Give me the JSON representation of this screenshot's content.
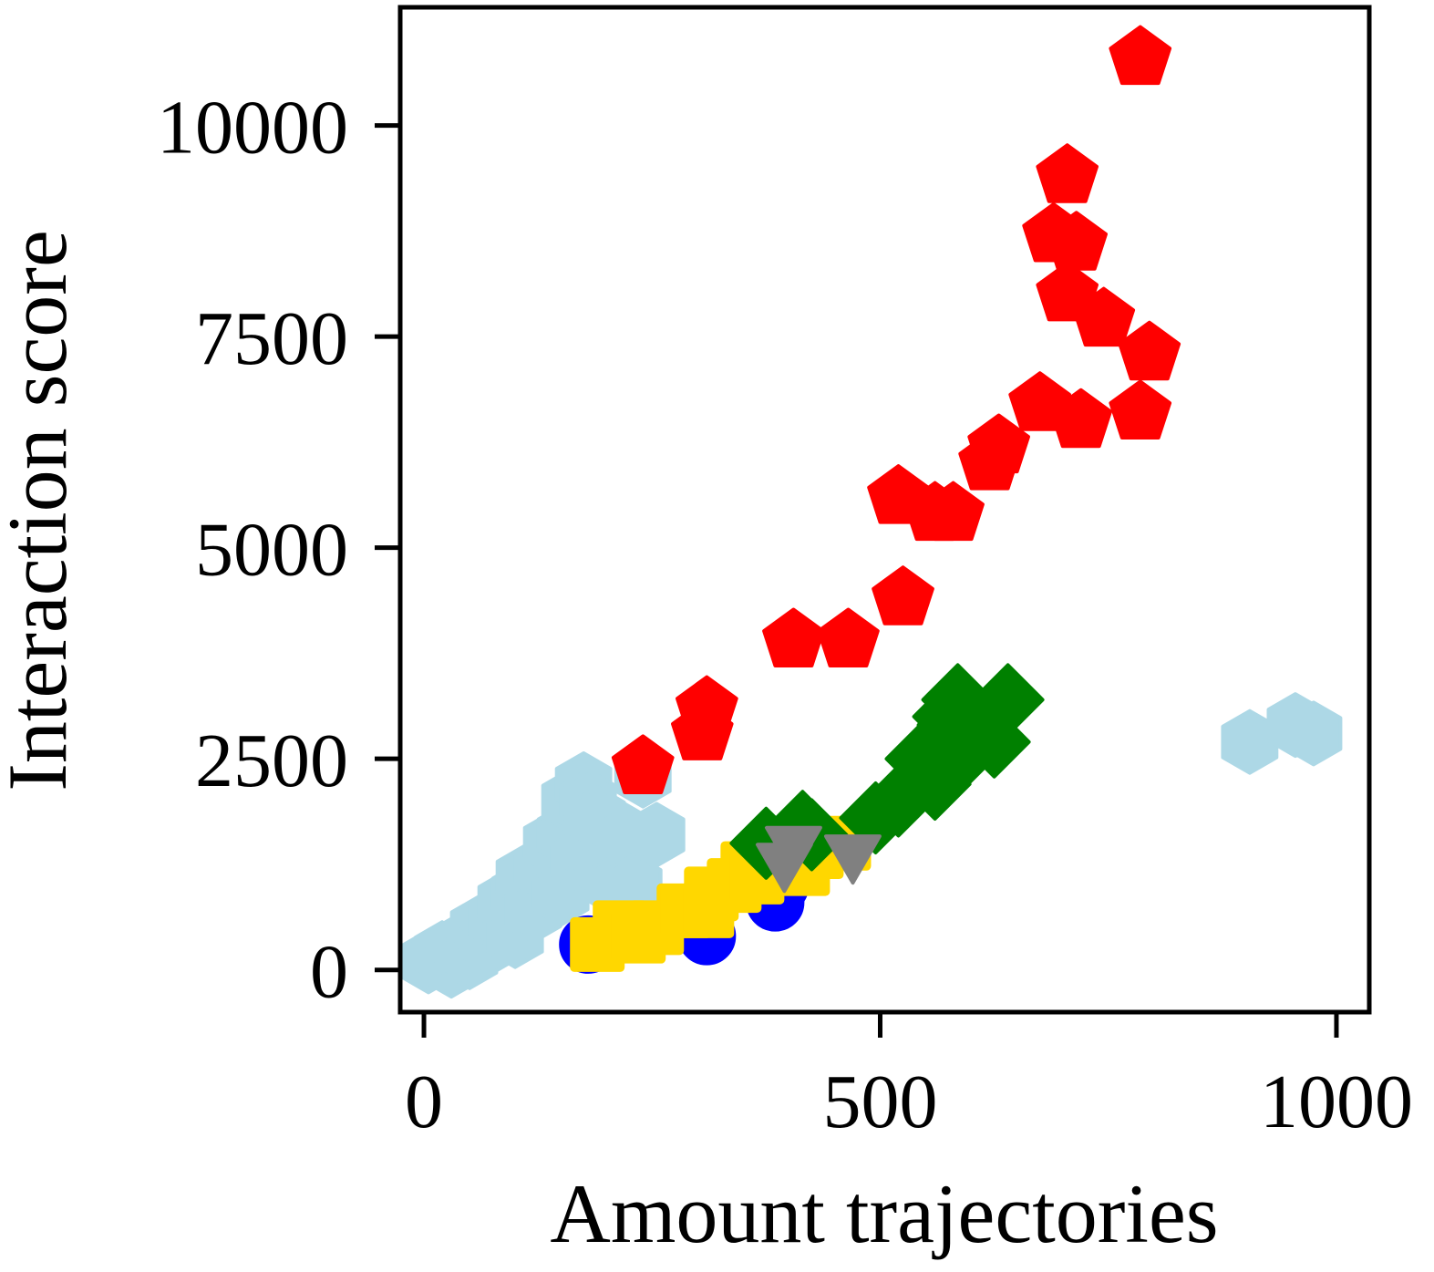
{
  "chart_data": {
    "type": "scatter",
    "title": "",
    "xlabel": "Amount trajectories",
    "ylabel": "Interaction score",
    "xlim": [
      -26,
      1036
    ],
    "ylim": [
      -500,
      11400
    ],
    "xticks": [
      0,
      500,
      1000
    ],
    "yticks": [
      0,
      2500,
      5000,
      7500,
      10000
    ],
    "grid": false,
    "legend": "none",
    "series": [
      {
        "marker": "hexagon",
        "color": "#add8e6",
        "points": [
          [
            5,
            100
          ],
          [
            20,
            200
          ],
          [
            30,
            50
          ],
          [
            40,
            300
          ],
          [
            50,
            150
          ],
          [
            60,
            500
          ],
          [
            70,
            300
          ],
          [
            80,
            600
          ],
          [
            90,
            800
          ],
          [
            100,
            400
          ],
          [
            105,
            900
          ],
          [
            110,
            1100
          ],
          [
            120,
            700
          ],
          [
            130,
            1200
          ],
          [
            140,
            1500
          ],
          [
            150,
            900
          ],
          [
            155,
            1600
          ],
          [
            160,
            2000
          ],
          [
            170,
            1300
          ],
          [
            175,
            2200
          ],
          [
            180,
            2000
          ],
          [
            185,
            1400
          ],
          [
            190,
            1800
          ],
          [
            200,
            1200
          ],
          [
            210,
            1000
          ],
          [
            220,
            1600
          ],
          [
            225,
            700
          ],
          [
            230,
            1000
          ],
          [
            240,
            2300
          ],
          [
            255,
            1600
          ],
          [
            905,
            2700
          ],
          [
            955,
            2900
          ],
          [
            975,
            2800
          ]
        ]
      },
      {
        "marker": "circle",
        "color": "#0000ff",
        "points": [
          [
            180,
            300
          ],
          [
            310,
            400
          ],
          [
            385,
            800
          ],
          [
            390,
            1000
          ]
        ]
      },
      {
        "marker": "square",
        "color": "#ffd700",
        "points": [
          [
            190,
            300
          ],
          [
            215,
            500
          ],
          [
            235,
            400
          ],
          [
            255,
            500
          ],
          [
            285,
            700
          ],
          [
            310,
            700
          ],
          [
            315,
            900
          ],
          [
            340,
            1000
          ],
          [
            355,
            1200
          ],
          [
            365,
            1100
          ],
          [
            385,
            1300
          ],
          [
            405,
            1400
          ],
          [
            415,
            1200
          ],
          [
            430,
            1400
          ],
          [
            460,
            1500
          ]
        ]
      },
      {
        "marker": "diamond",
        "color": "#008000",
        "points": [
          [
            375,
            1500
          ],
          [
            415,
            1700
          ],
          [
            425,
            1600
          ],
          [
            495,
            1800
          ],
          [
            520,
            2000
          ],
          [
            545,
            2500
          ],
          [
            560,
            2200
          ],
          [
            565,
            2700
          ],
          [
            575,
            3000
          ],
          [
            580,
            2900
          ],
          [
            585,
            3200
          ],
          [
            595,
            2600
          ],
          [
            605,
            2900
          ],
          [
            625,
            2700
          ],
          [
            640,
            3200
          ]
        ]
      },
      {
        "marker": "triangle-down",
        "color": "#808080",
        "points": [
          [
            395,
            1300
          ],
          [
            405,
            1500
          ],
          [
            470,
            1400
          ]
        ]
      },
      {
        "marker": "pentagon",
        "color": "#ff0000",
        "points": [
          [
            240,
            2400
          ],
          [
            305,
            2800
          ],
          [
            310,
            3100
          ],
          [
            405,
            3900
          ],
          [
            465,
            3900
          ],
          [
            520,
            5600
          ],
          [
            525,
            4400
          ],
          [
            560,
            5400
          ],
          [
            580,
            5400
          ],
          [
            620,
            6000
          ],
          [
            630,
            6200
          ],
          [
            675,
            6700
          ],
          [
            690,
            8700
          ],
          [
            705,
            8000
          ],
          [
            705,
            9400
          ],
          [
            715,
            8600
          ],
          [
            720,
            6500
          ],
          [
            745,
            7700
          ],
          [
            785,
            6600
          ],
          [
            785,
            10800
          ],
          [
            795,
            7300
          ]
        ]
      }
    ]
  }
}
